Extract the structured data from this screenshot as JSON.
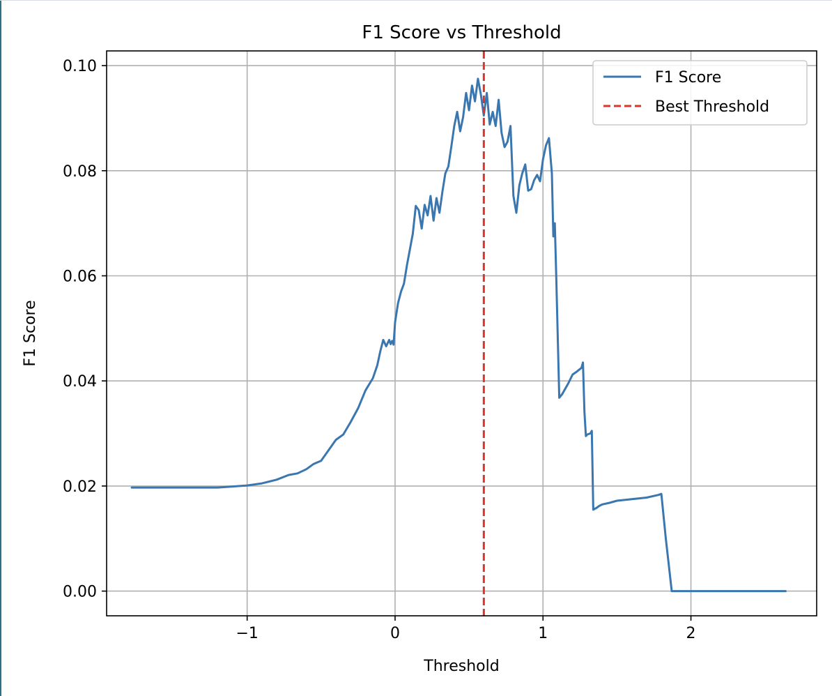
{
  "chart_data": {
    "type": "line",
    "title": "F1 Score vs Threshold",
    "xlabel": "Threshold",
    "ylabel": "F1 Score",
    "xlim": [
      -1.95,
      2.85
    ],
    "ylim": [
      -0.0047,
      0.1028
    ],
    "xticks": [
      -1,
      0,
      1,
      2
    ],
    "xtick_labels": [
      "−1",
      "0",
      "1",
      "2"
    ],
    "yticks": [
      0.0,
      0.02,
      0.04,
      0.06,
      0.08,
      0.1
    ],
    "ytick_labels": [
      "0.00",
      "0.02",
      "0.04",
      "0.06",
      "0.08",
      "0.10"
    ],
    "grid": true,
    "legend": "top-right",
    "series": [
      {
        "name": "F1 Score",
        "color": "#3a76af",
        "style": "solid",
        "x": [
          -1.78,
          -1.5,
          -1.2,
          -1.0,
          -0.9,
          -0.8,
          -0.72,
          -0.66,
          -0.6,
          -0.55,
          -0.5,
          -0.45,
          -0.4,
          -0.35,
          -0.3,
          -0.25,
          -0.2,
          -0.15,
          -0.12,
          -0.1,
          -0.08,
          -0.06,
          -0.04,
          -0.03,
          -0.02,
          -0.01,
          0.0,
          0.02,
          0.04,
          0.06,
          0.08,
          0.1,
          0.12,
          0.14,
          0.16,
          0.18,
          0.2,
          0.22,
          0.24,
          0.26,
          0.28,
          0.3,
          0.32,
          0.34,
          0.36,
          0.38,
          0.4,
          0.42,
          0.44,
          0.46,
          0.48,
          0.5,
          0.52,
          0.54,
          0.56,
          0.58,
          0.6,
          0.62,
          0.64,
          0.66,
          0.68,
          0.7,
          0.72,
          0.74,
          0.76,
          0.78,
          0.8,
          0.82,
          0.84,
          0.86,
          0.88,
          0.9,
          0.92,
          0.94,
          0.96,
          0.98,
          1.0,
          1.02,
          1.04,
          1.06,
          1.07,
          1.08,
          1.09,
          1.1,
          1.11,
          1.13,
          1.15,
          1.17,
          1.2,
          1.23,
          1.26,
          1.27,
          1.28,
          1.29,
          1.3,
          1.32,
          1.33,
          1.34,
          1.36,
          1.38,
          1.4,
          1.45,
          1.5,
          1.6,
          1.7,
          1.78,
          1.8,
          1.83,
          1.87,
          2.0,
          2.3,
          2.64
        ],
        "values": [
          0.0197,
          0.0197,
          0.0197,
          0.0201,
          0.0205,
          0.0212,
          0.0221,
          0.0224,
          0.0232,
          0.0242,
          0.0248,
          0.0268,
          0.0288,
          0.0298,
          0.0322,
          0.0348,
          0.0382,
          0.0405,
          0.043,
          0.0456,
          0.0478,
          0.0466,
          0.0478,
          0.047,
          0.0476,
          0.0469,
          0.0512,
          0.0548,
          0.057,
          0.0585,
          0.062,
          0.065,
          0.068,
          0.0733,
          0.0725,
          0.069,
          0.0735,
          0.0715,
          0.0752,
          0.0705,
          0.0748,
          0.072,
          0.076,
          0.0795,
          0.0808,
          0.0845,
          0.0885,
          0.0912,
          0.0875,
          0.0902,
          0.0948,
          0.0915,
          0.0962,
          0.0932,
          0.0975,
          0.0945,
          0.0905,
          0.0948,
          0.0888,
          0.0912,
          0.0885,
          0.0935,
          0.0872,
          0.0845,
          0.0855,
          0.0885,
          0.0752,
          0.072,
          0.0772,
          0.0795,
          0.0812,
          0.0762,
          0.0765,
          0.0782,
          0.0792,
          0.078,
          0.0822,
          0.0848,
          0.0862,
          0.0795,
          0.0675,
          0.07,
          0.0592,
          0.048,
          0.0368,
          0.0375,
          0.0385,
          0.0395,
          0.0412,
          0.0418,
          0.0425,
          0.0435,
          0.0342,
          0.0295,
          0.0298,
          0.03,
          0.0305,
          0.0155,
          0.0158,
          0.0162,
          0.0165,
          0.0168,
          0.0172,
          0.0175,
          0.0178,
          0.0183,
          0.0185,
          0.01,
          0.0,
          0.0,
          0.0,
          0.0
        ]
      }
    ],
    "vlines": [
      {
        "name": "Best Threshold",
        "x": 0.6,
        "color": "#d9352a",
        "style": "dashed"
      }
    ]
  }
}
